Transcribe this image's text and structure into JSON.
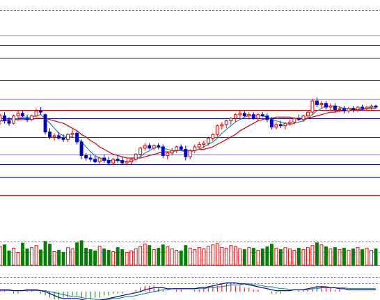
{
  "chart_data": {
    "type": "candlestick",
    "title": "",
    "grid": true,
    "colors": {
      "up": "#e00000",
      "down": "#0000cc",
      "doji": "#800080",
      "ma_fast": "#008080",
      "ma_slow": "#cc0000",
      "volume_up": "#ff0000",
      "volume_down": "#008000",
      "level_red": "#cc0000",
      "level_blue": "#000099",
      "level_gray": "#7f7fbf",
      "macd_line": "#000099",
      "macd_signal": "#008080"
    },
    "price_levels": [
      {
        "price": 420,
        "color": "red",
        "style": "dashed"
      },
      {
        "price": 400,
        "color": "gray",
        "style": "solid"
      },
      {
        "price": 392,
        "color": "red",
        "style": "solid"
      },
      {
        "price": 382,
        "color": "blue",
        "style": "solid"
      },
      {
        "price": 364,
        "color": "red",
        "style": "solid"
      },
      {
        "price": 349,
        "color": "gray",
        "style": "solid"
      },
      {
        "price": 340,
        "color": "red",
        "style": "solid"
      },
      {
        "price": 333,
        "color": "blue",
        "style": "solid"
      },
      {
        "price": 318,
        "color": "red",
        "style": "solid"
      },
      {
        "price": 304,
        "color": "gray",
        "style": "solid"
      },
      {
        "price": 296,
        "color": "blue",
        "style": "solid"
      },
      {
        "price": 286,
        "color": "blue",
        "style": "solid"
      },
      {
        "price": 271,
        "color": "red",
        "style": "solid"
      }
    ],
    "y_range": [
      260,
      424
    ],
    "ohlc": [
      [
        331,
        337,
        328,
        335
      ],
      [
        335,
        338,
        329,
        331
      ],
      [
        331,
        334,
        327,
        329
      ],
      [
        329,
        336,
        328,
        335
      ],
      [
        335,
        339,
        331,
        337
      ],
      [
        337,
        339,
        334,
        335
      ],
      [
        333,
        336,
        330,
        332
      ],
      [
        332,
        336,
        331,
        335
      ],
      [
        335,
        341,
        334,
        339
      ],
      [
        339,
        342,
        336,
        338
      ],
      [
        336,
        337,
        320,
        322
      ],
      [
        322,
        325,
        316,
        318
      ],
      [
        318,
        321,
        315,
        319
      ],
      [
        319,
        322,
        316,
        317
      ],
      [
        317,
        320,
        314,
        316
      ],
      [
        316,
        321,
        314,
        320
      ],
      [
        320,
        324,
        318,
        321
      ],
      [
        321,
        323,
        312,
        314
      ],
      [
        314,
        316,
        300,
        303
      ],
      [
        303,
        305,
        299,
        301
      ],
      [
        301,
        304,
        298,
        300
      ],
      [
        300,
        303,
        297,
        298
      ],
      [
        298,
        302,
        296,
        301
      ],
      [
        301,
        304,
        297,
        299
      ],
      [
        299,
        302,
        296,
        297
      ],
      [
        297,
        301,
        295,
        300
      ],
      [
        300,
        303,
        297,
        299
      ],
      [
        299,
        302,
        296,
        297
      ],
      [
        297,
        300,
        295,
        298
      ],
      [
        298,
        301,
        296,
        300
      ],
      [
        300,
        305,
        298,
        304
      ],
      [
        304,
        310,
        302,
        309
      ],
      [
        309,
        313,
        307,
        311
      ],
      [
        311,
        313,
        308,
        309
      ],
      [
        309,
        312,
        307,
        311
      ],
      [
        311,
        313,
        308,
        310
      ],
      [
        310,
        312,
        301,
        303
      ],
      [
        303,
        306,
        300,
        305
      ],
      [
        305,
        309,
        303,
        307
      ],
      [
        307,
        311,
        305,
        310
      ],
      [
        310,
        312,
        307,
        308
      ],
      [
        308,
        311,
        299,
        302
      ],
      [
        302,
        308,
        300,
        307
      ],
      [
        307,
        312,
        305,
        310
      ],
      [
        310,
        314,
        308,
        312
      ],
      [
        312,
        315,
        309,
        313
      ],
      [
        313,
        318,
        311,
        317
      ],
      [
        317,
        321,
        315,
        320
      ],
      [
        320,
        328,
        318,
        327
      ],
      [
        327,
        330,
        324,
        328
      ],
      [
        328,
        332,
        325,
        331
      ],
      [
        331,
        334,
        328,
        333
      ],
      [
        333,
        337,
        330,
        336
      ],
      [
        336,
        339,
        333,
        337
      ],
      [
        337,
        339,
        334,
        335
      ],
      [
        335,
        338,
        332,
        336
      ],
      [
        336,
        338,
        332,
        333
      ],
      [
        333,
        337,
        331,
        336
      ],
      [
        336,
        338,
        334,
        335
      ],
      [
        335,
        337,
        330,
        332
      ],
      [
        332,
        334,
        324,
        326
      ],
      [
        326,
        330,
        324,
        328
      ],
      [
        328,
        331,
        325,
        327
      ],
      [
        327,
        330,
        324,
        329
      ],
      [
        329,
        332,
        327,
        330
      ],
      [
        330,
        334,
        328,
        333
      ],
      [
        333,
        336,
        331,
        332
      ],
      [
        332,
        336,
        330,
        335
      ],
      [
        335,
        339,
        333,
        338
      ],
      [
        338,
        349,
        336,
        347
      ],
      [
        347,
        350,
        342,
        344
      ],
      [
        344,
        347,
        341,
        345
      ],
      [
        345,
        347,
        340,
        342
      ],
      [
        342,
        345,
        339,
        343
      ],
      [
        343,
        345,
        338,
        340
      ],
      [
        340,
        343,
        338,
        341
      ],
      [
        341,
        343,
        337,
        339
      ],
      [
        339,
        342,
        337,
        341
      ],
      [
        341,
        343,
        338,
        340
      ],
      [
        340,
        343,
        338,
        342
      ],
      [
        342,
        344,
        339,
        341
      ],
      [
        341,
        343,
        339,
        342
      ],
      [
        342,
        344,
        340,
        343
      ],
      [
        343,
        344,
        341,
        342
      ]
    ],
    "ma_fast": [
      333,
      333,
      332,
      332,
      333,
      334,
      334,
      334,
      335,
      336,
      333,
      329,
      325,
      321,
      319,
      318,
      318,
      317,
      314,
      310,
      306,
      303,
      301,
      300,
      299,
      299,
      299,
      299,
      298,
      298,
      300,
      302,
      305,
      307,
      309,
      310,
      309,
      308,
      307,
      307,
      307,
      306,
      306,
      307,
      308,
      310,
      312,
      314,
      317,
      321,
      324,
      327,
      330,
      332,
      334,
      335,
      335,
      335,
      335,
      334,
      332,
      331,
      330,
      329,
      328,
      329,
      330,
      331,
      333,
      336,
      339,
      341,
      343,
      343,
      343,
      342,
      341,
      341,
      341,
      341,
      341,
      341,
      342,
      342
    ],
    "ma_slow": [
      331,
      331,
      332,
      332,
      332,
      332,
      332,
      332,
      333,
      333,
      333,
      332,
      331,
      330,
      329,
      327,
      325,
      323,
      320,
      318,
      315,
      313,
      310,
      308,
      306,
      304,
      303,
      302,
      301,
      301,
      301,
      301,
      302,
      303,
      304,
      305,
      306,
      306,
      306,
      307,
      307,
      307,
      307,
      307,
      308,
      308,
      309,
      310,
      312,
      314,
      316,
      318,
      320,
      323,
      325,
      327,
      329,
      331,
      332,
      333,
      333,
      334,
      334,
      334,
      334,
      333,
      333,
      333,
      333,
      334,
      335,
      336,
      337,
      338,
      338,
      339,
      339,
      340,
      340,
      340,
      340,
      341,
      341,
      341
    ],
    "volume": [
      55,
      60,
      42,
      50,
      38,
      65,
      48,
      52,
      58,
      45,
      70,
      62,
      40,
      44,
      38,
      52,
      48,
      66,
      72,
      50,
      46,
      42,
      56,
      48,
      44,
      40,
      52,
      46,
      38,
      42,
      48,
      55,
      62,
      58,
      46,
      50,
      60,
      54,
      48,
      44,
      42,
      58,
      50,
      46,
      52,
      48,
      56,
      60,
      64,
      52,
      50,
      58,
      55,
      48,
      46,
      52,
      50,
      44,
      48,
      54,
      62,
      50,
      46,
      52,
      48,
      44,
      50,
      46,
      52,
      58,
      66,
      60,
      54,
      48,
      52,
      46,
      50,
      44,
      48,
      52,
      46,
      50,
      44,
      48
    ],
    "macd_hist": [
      1,
      1,
      0,
      -1,
      -1,
      0,
      1,
      1,
      0,
      -1,
      -2,
      -3,
      -4,
      -4,
      -3,
      -3,
      -2,
      -2,
      -3,
      -4,
      -4,
      -3,
      -3,
      -2,
      -2,
      -1,
      -1,
      -1,
      0,
      0,
      1,
      2,
      3,
      3,
      3,
      2,
      1,
      0,
      0,
      1,
      1,
      0,
      0,
      1,
      1,
      2,
      2,
      3,
      3,
      4,
      4,
      4,
      3,
      3,
      2,
      2,
      1,
      1,
      0,
      0,
      -1,
      -1,
      -1,
      0,
      0,
      0,
      1,
      1,
      1,
      2,
      3,
      3,
      2,
      2,
      1,
      1,
      0,
      0,
      0,
      0,
      0,
      0,
      0,
      0
    ],
    "macd_line": [
      2,
      2,
      2,
      1,
      1,
      1,
      2,
      2,
      2,
      1,
      0,
      -2,
      -4,
      -6,
      -7,
      -7,
      -7,
      -7,
      -8,
      -9,
      -10,
      -10,
      -9,
      -8,
      -7,
      -6,
      -5,
      -4,
      -3,
      -2,
      -1,
      0,
      2,
      3,
      4,
      4,
      4,
      3,
      3,
      3,
      3,
      3,
      3,
      3,
      4,
      4,
      5,
      6,
      7,
      8,
      9,
      9,
      9,
      8,
      8,
      7,
      6,
      5,
      4,
      3,
      2,
      1,
      1,
      1,
      1,
      2,
      2,
      2,
      3,
      4,
      5,
      5,
      5,
      4,
      4,
      3,
      3,
      2,
      2,
      2,
      2,
      2,
      2,
      2
    ],
    "macd_signal": [
      1,
      1,
      1,
      1,
      1,
      1,
      1,
      1,
      1,
      1,
      1,
      0,
      -1,
      -2,
      -3,
      -4,
      -5,
      -5,
      -6,
      -7,
      -7,
      -8,
      -8,
      -8,
      -8,
      -7,
      -7,
      -6,
      -5,
      -5,
      -4,
      -3,
      -2,
      -1,
      0,
      1,
      2,
      2,
      3,
      3,
      3,
      3,
      3,
      3,
      3,
      3,
      4,
      4,
      5,
      5,
      6,
      7,
      7,
      7,
      8,
      8,
      7,
      7,
      6,
      5,
      5,
      4,
      3,
      3,
      2,
      2,
      2,
      2,
      2,
      3,
      3,
      4,
      4,
      4,
      4,
      4,
      4,
      3,
      3,
      3,
      3,
      3,
      3,
      3
    ]
  }
}
